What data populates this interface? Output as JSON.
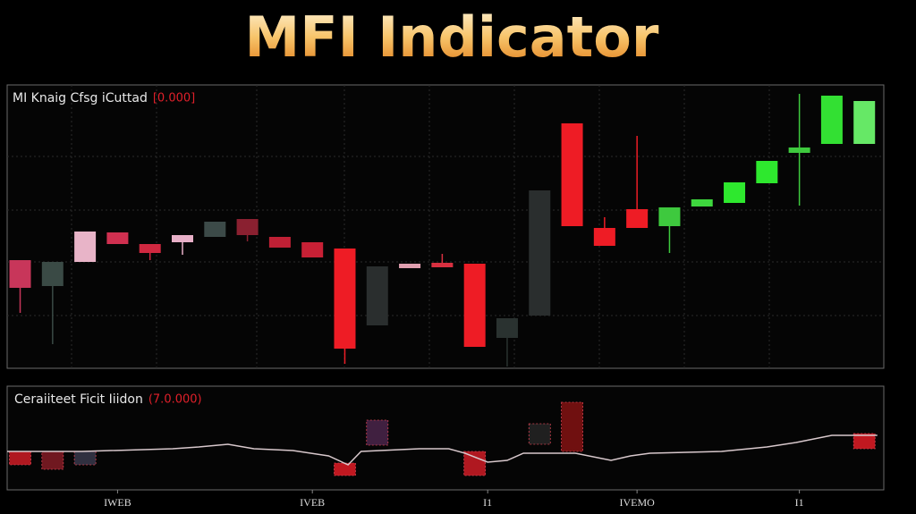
{
  "chart_data": [
    {
      "type": "candlestick",
      "title": "MFI Indicator",
      "label": "MI Knaig Cfsg iCuttad",
      "label_value": "[0.000]",
      "ylim": [
        0,
        317
      ],
      "xlim": [
        -0.4,
        26.6
      ],
      "open": [
        121,
        92,
        119,
        152,
        139,
        141,
        147,
        167,
        147,
        141,
        134,
        48,
        117,
        118,
        117,
        34,
        59,
        274,
        157,
        178,
        159,
        181,
        185,
        207,
        241,
        251,
        251
      ],
      "high": [
        121,
        119,
        153,
        152,
        139,
        149,
        164,
        167,
        147,
        141,
        134,
        114,
        117,
        128,
        117,
        56,
        199,
        274,
        169,
        260,
        180,
        189,
        208,
        232,
        307,
        305,
        299
      ],
      "low": [
        62,
        27,
        119,
        139,
        121,
        127,
        147,
        142,
        135,
        124,
        5,
        48,
        112,
        113,
        24,
        2,
        59,
        159,
        137,
        157,
        129,
        181,
        185,
        207,
        182,
        251,
        251
      ],
      "close": [
        90,
        119,
        153,
        139,
        129,
        149,
        164,
        149,
        135,
        124,
        22,
        114,
        112,
        113,
        24,
        56,
        199,
        159,
        137,
        157,
        180,
        189,
        208,
        232,
        247,
        305,
        299
      ],
      "colors": [
        "#c8365a",
        "#3a4a45",
        "#e8b4c8",
        "#d03050",
        "#d02840",
        "#e8b0c8",
        "#3c4a48",
        "#8a2030",
        "#c02035",
        "#c82035",
        "#ee1c25",
        "#2a2e2e",
        "#e0a0b0",
        "#d83040",
        "#ee1c25",
        "#2a3230",
        "#2a2e2e",
        "#ee1c25",
        "#ee1c25",
        "#ee1c25",
        "#3ec93e",
        "#3ed83e",
        "#2ee82e",
        "#2ee82e",
        "#3ec93e",
        "#33e033",
        "#66e866"
      ]
    },
    {
      "type": "line",
      "label": "Ceraiiteet Ficit Iiidon",
      "label_value": "(7.0.000)",
      "ylim": [
        0,
        116
      ],
      "xlim": [
        -0.4,
        26.6
      ],
      "xticks": [
        {
          "value": 3,
          "label": "IWEB"
        },
        {
          "value": 9,
          "label": "IVEB"
        },
        {
          "value": 14.4,
          "label": "I1"
        },
        {
          "value": 19,
          "label": "IVEMO"
        },
        {
          "value": 24,
          "label": "I1"
        }
      ],
      "x": [
        -0.4,
        1.9,
        4.7,
        5.5,
        6.4,
        7.2,
        8.4,
        9.5,
        10.1,
        10.5,
        12.3,
        13.2,
        13.7,
        14.4,
        15.0,
        15.5,
        17.1,
        18.2,
        18.8,
        19.4,
        21.6,
        23.0,
        23.9,
        25.0,
        26.4
      ],
      "values": [
        43,
        43,
        46,
        48,
        51,
        46,
        44,
        38,
        28,
        43,
        46,
        46,
        41,
        31,
        33,
        41,
        41,
        33,
        38,
        41,
        43,
        48,
        53,
        61,
        61
      ],
      "color": "#d8c8cc",
      "bars": {
        "x": [
          0,
          1,
          2,
          10,
          11,
          14,
          16,
          17,
          26
        ],
        "top": [
          43,
          43,
          43,
          30,
          78,
          43,
          74,
          98,
          63
        ],
        "bottom": [
          28,
          23,
          28,
          16,
          50,
          16,
          51,
          43,
          46
        ],
        "colors": [
          "#b01820",
          "#701820",
          "#303040",
          "#c01820",
          "#402040",
          "#b01820",
          "#202020",
          "#701010",
          "#c01820"
        ]
      }
    }
  ]
}
